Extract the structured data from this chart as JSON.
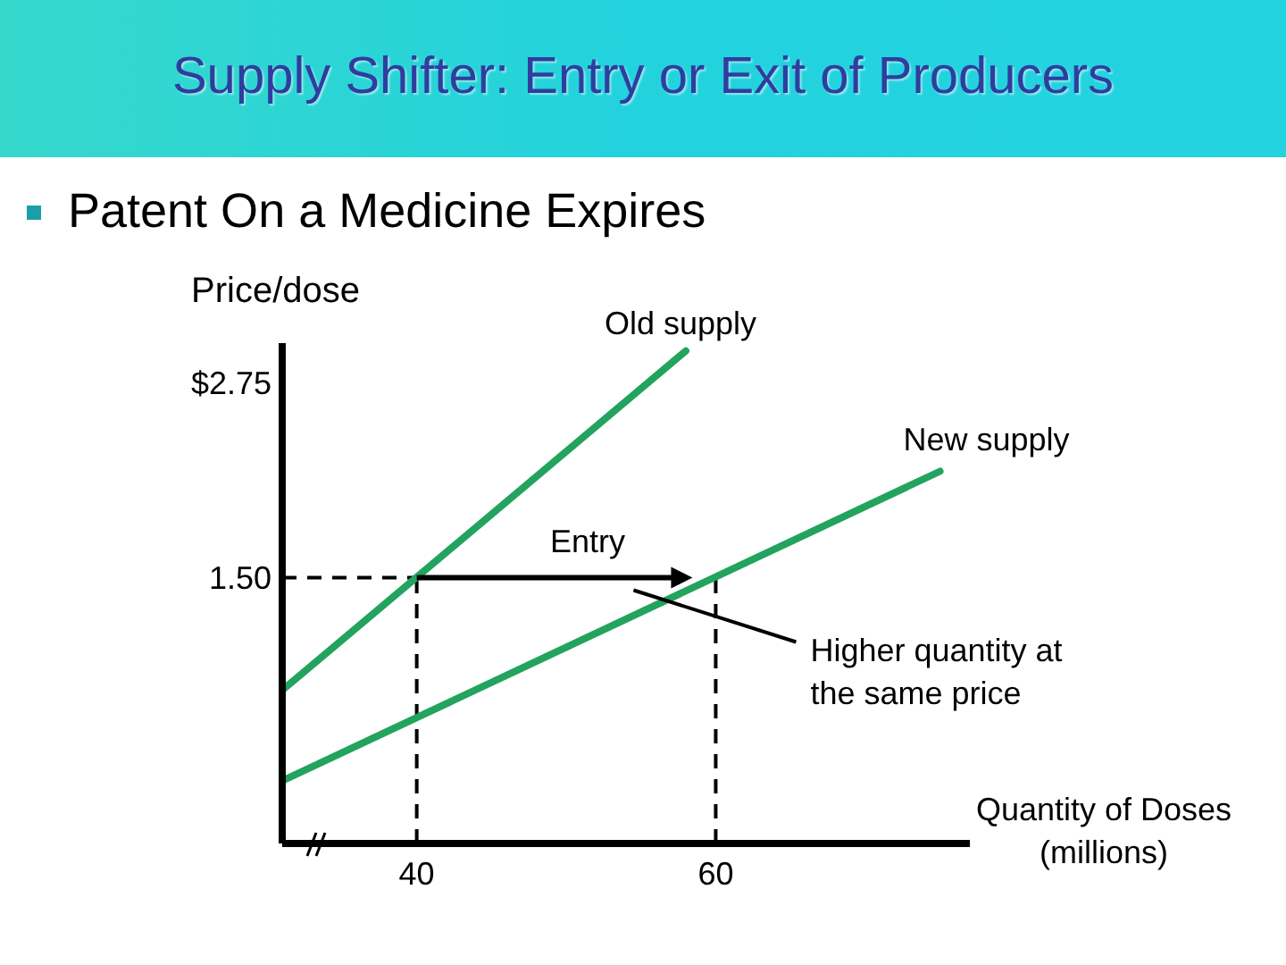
{
  "chart_data": {
    "type": "line",
    "title": "Supply Shifter: Entry or Exit of Producers",
    "subtitle": "Patent On a Medicine Expires",
    "xlabel": "Quantity of Doses (millions)",
    "ylabel": "Price/dose",
    "xlim": [
      31,
      77
    ],
    "xticks": [
      40,
      60
    ],
    "ylim": [
      -0.2,
      3
    ],
    "yticks": [
      {
        "value": 1.5,
        "label": "1.50"
      },
      {
        "value": 2.75,
        "label": "$2.75"
      }
    ],
    "series": [
      {
        "name": "Old supply",
        "color": "#22a35e",
        "x": [
          31,
          58
        ],
        "values": [
          0.78,
          2.95
        ]
      },
      {
        "name": "New supply",
        "color": "#22a35e",
        "x": [
          31,
          75
        ],
        "values": [
          0.2,
          2.18
        ]
      }
    ],
    "ref_lines": [
      {
        "axis": "y",
        "value": 1.5,
        "line_style": "dashed"
      },
      {
        "axis": "x",
        "value": 40,
        "line_style": "dashed"
      },
      {
        "axis": "x",
        "value": 60,
        "line_style": "dashed"
      }
    ],
    "line_style": "solid",
    "marker": "none",
    "annotations": [
      "Entry",
      "Higher quantity at the same price"
    ]
  }
}
